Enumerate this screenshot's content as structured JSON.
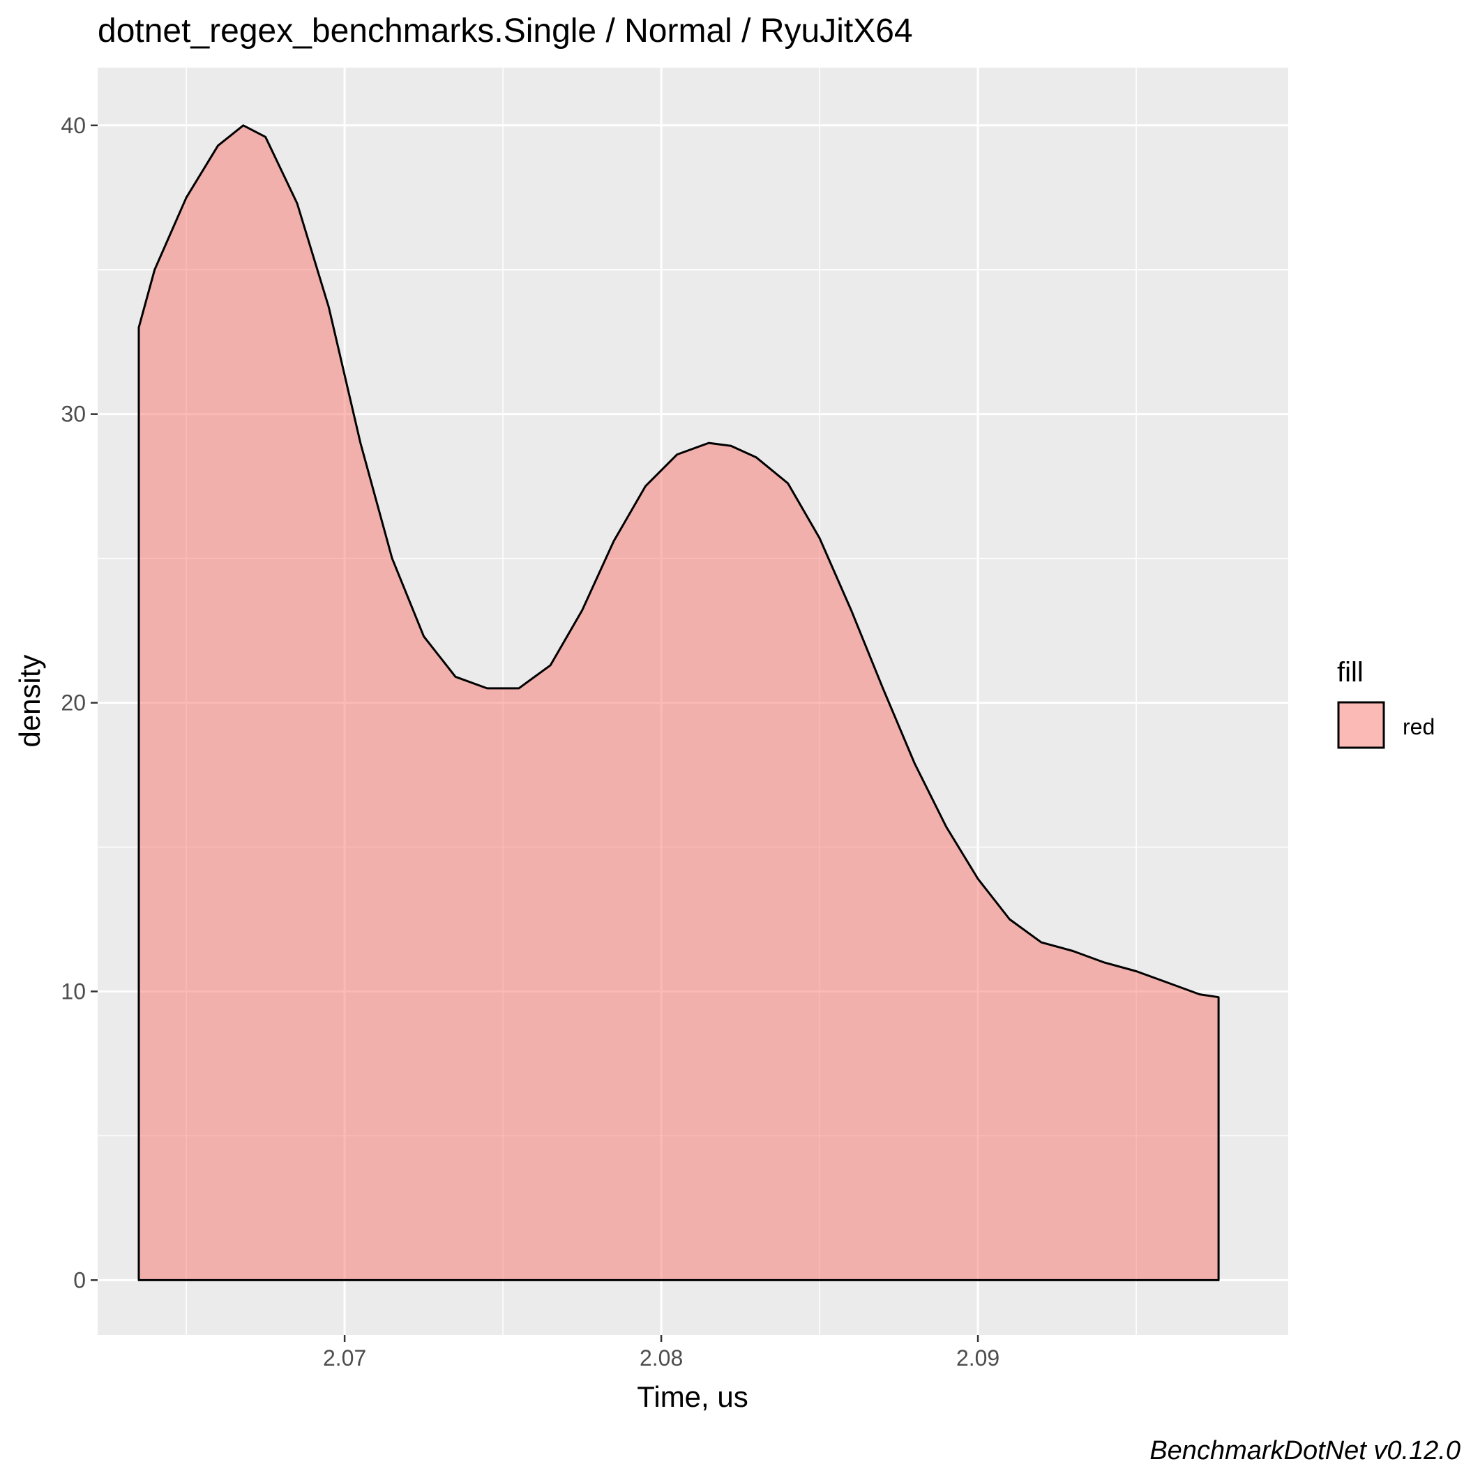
{
  "chart_data": {
    "type": "area",
    "title": "dotnet_regex_benchmarks.Single / Normal / RyuJitX64",
    "xlabel": "Time, us",
    "ylabel": "density",
    "caption": "BenchmarkDotNet v0.12.0",
    "xlim": [
      2.0622,
      2.0998
    ],
    "ylim": [
      -1.9,
      42.0
    ],
    "x_ticks": [
      2.07,
      2.08,
      2.09
    ],
    "x_tick_labels": [
      "2.07",
      "2.08",
      "2.09"
    ],
    "y_ticks": [
      0,
      10,
      20,
      30,
      40
    ],
    "y_tick_labels": [
      "0",
      "10",
      "20",
      "30",
      "40"
    ],
    "grid": true,
    "legend": {
      "title": "fill",
      "position": "right",
      "entries": [
        "red"
      ]
    },
    "colors": {
      "fill": "#F8766D",
      "fill_opacity": 0.5,
      "outline": "#000000",
      "panel": "#EBEBEB",
      "grid": "#FFFFFF"
    },
    "series": [
      {
        "name": "red",
        "x": [
          2.0635,
          2.064,
          2.065,
          2.066,
          2.0668,
          2.0675,
          2.0685,
          2.0695,
          2.0705,
          2.0715,
          2.0725,
          2.0735,
          2.0745,
          2.0755,
          2.0765,
          2.0775,
          2.0785,
          2.0795,
          2.0805,
          2.0815,
          2.0822,
          2.083,
          2.084,
          2.085,
          2.086,
          2.087,
          2.088,
          2.089,
          2.09,
          2.091,
          2.092,
          2.093,
          2.094,
          2.095,
          2.096,
          2.097,
          2.0976
        ],
        "y": [
          33.0,
          35.0,
          37.5,
          39.3,
          40.0,
          39.6,
          37.3,
          33.7,
          29.0,
          25.0,
          22.3,
          20.9,
          20.5,
          20.5,
          21.3,
          23.2,
          25.6,
          27.5,
          28.6,
          29.0,
          28.9,
          28.5,
          27.6,
          25.7,
          23.2,
          20.5,
          17.9,
          15.7,
          13.9,
          12.5,
          11.7,
          11.4,
          11.0,
          10.7,
          10.3,
          9.9,
          9.8
        ]
      }
    ]
  }
}
